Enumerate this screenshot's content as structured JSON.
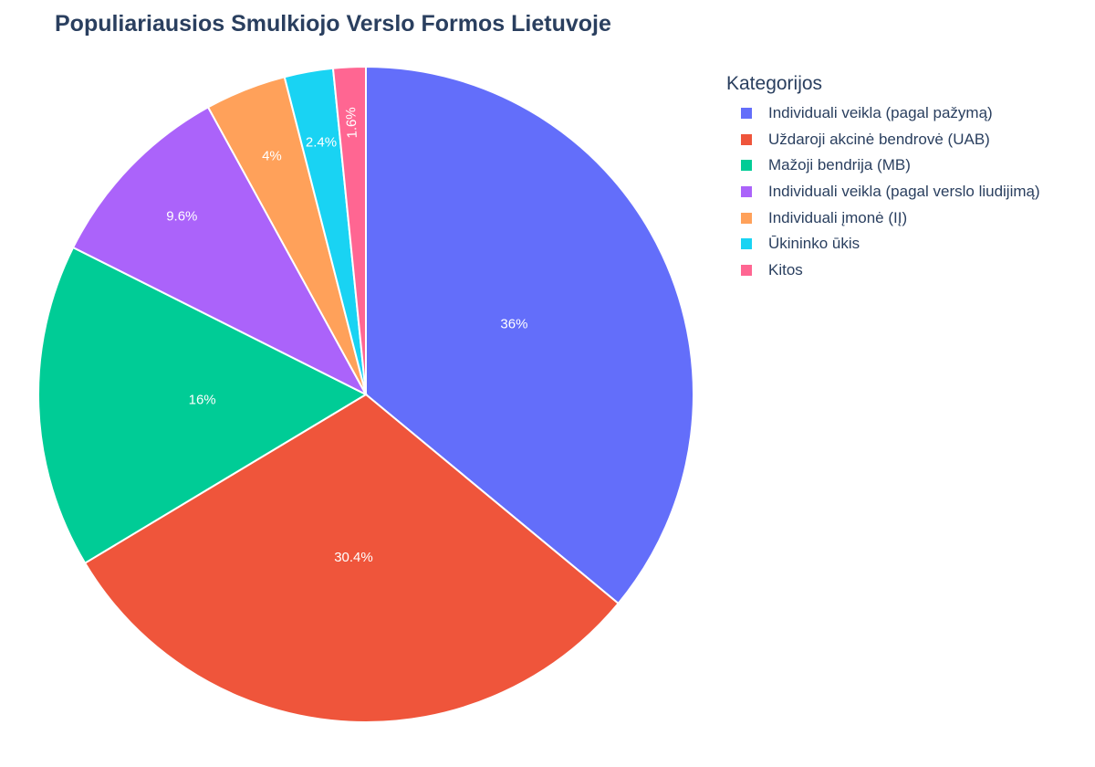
{
  "chart_data": {
    "type": "pie",
    "title": "Populiariausios Smulkiojo Verslo Formos Lietuvoje",
    "legend_title": "Kategorijos",
    "legend_position": "right",
    "slices": [
      {
        "label": "Individuali veikla (pagal pažymą)",
        "value": 36,
        "text": "36%",
        "color": "#636efa"
      },
      {
        "label": "Uždaroji akcinė bendrovė (UAB)",
        "value": 30.4,
        "text": "30.4%",
        "color": "#ef553b"
      },
      {
        "label": "Mažoji bendrija (MB)",
        "value": 16,
        "text": "16%",
        "color": "#00cc96"
      },
      {
        "label": "Individuali veikla (pagal verslo liudijimą)",
        "value": 9.6,
        "text": "9.6%",
        "color": "#ab63fa"
      },
      {
        "label": "Individuali įmonė (IĮ)",
        "value": 4,
        "text": "4%",
        "color": "#ffa15a"
      },
      {
        "label": "Ūkininko ūkis",
        "value": 2.4,
        "text": "2.4%",
        "color": "#19d3f3"
      },
      {
        "label": "Kitos",
        "value": 1.6,
        "text": "1.6%",
        "color": "#ff6692"
      }
    ],
    "start_angle_deg": 0,
    "direction": "clockwise"
  }
}
